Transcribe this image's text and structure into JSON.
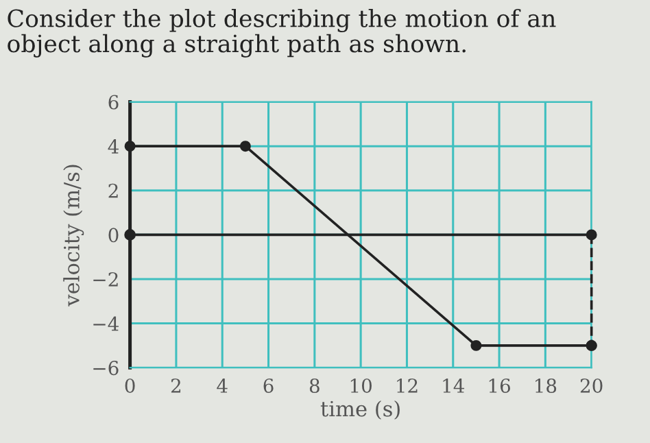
{
  "chart_data": {
    "type": "line",
    "title": "Consider the plot describing the motion of an\nobject along a straight path as shown.",
    "xlabel": "time (s)",
    "ylabel": "velocity (m/s)",
    "xlim": [
      0,
      20
    ],
    "ylim": [
      -6,
      6
    ],
    "xticks": [
      0,
      2,
      4,
      6,
      8,
      10,
      12,
      14,
      16,
      18,
      20
    ],
    "yticks": [
      -6,
      -4,
      -2,
      0,
      2,
      4,
      6
    ],
    "grid": true,
    "series": [
      {
        "color": "#222222",
        "x": [
          0,
          5,
          15,
          20
        ],
        "values": [
          4,
          4,
          -5,
          -5
        ],
        "marker": "circle",
        "line_style": "solid"
      },
      {
        "type": "scatter",
        "color": "#222222",
        "x": [
          0
        ],
        "values": [
          0
        ],
        "marker": "circle"
      },
      {
        "color": "#222222",
        "x": [
          20,
          20
        ],
        "values": [
          0,
          -5
        ],
        "marker": "circle",
        "line_style": "dashed"
      }
    ],
    "ref_lines": [
      {
        "axis": "y",
        "value": 0,
        "color": "#222222"
      }
    ]
  }
}
